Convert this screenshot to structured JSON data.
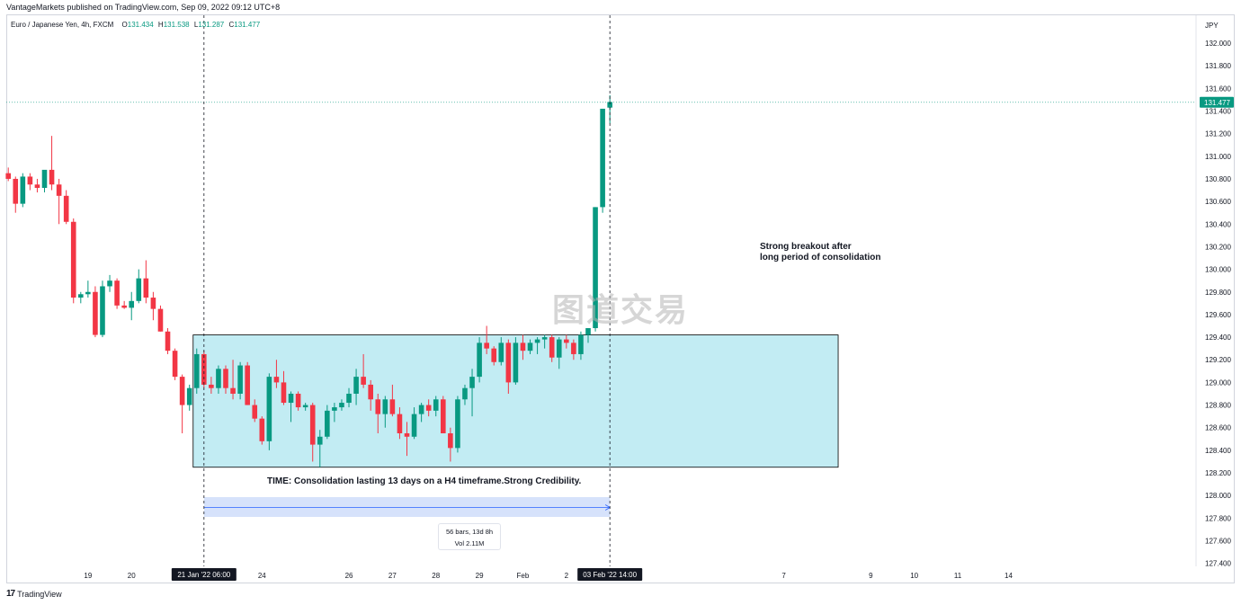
{
  "header": {
    "published": "VantageMarkets published on TradingView.com, Sep 09, 2022 09:12 UTC+8"
  },
  "legend": {
    "symbol": "Euro / Japanese Yen, 4h, FXCM",
    "o_label": "O",
    "o": "131.434",
    "h_label": "H",
    "h": "131.538",
    "l_label": "L",
    "l": "131.287",
    "c_label": "C",
    "c": "131.477"
  },
  "annotations": {
    "breakout_line1": "Strong breakout after",
    "breakout_line2": "long period of consolidation",
    "time_note": "TIME: Consolidation lasting 13 days on a H4 timeframe.Strong Credibility.",
    "measure_bars": "56 bars, 13d 8h",
    "measure_vol": "Vol 2.11M"
  },
  "watermark": "图道交易",
  "footer": {
    "logo": "17",
    "brand": "TradingView"
  },
  "colors": {
    "up": "#089981",
    "down": "#f23645",
    "box_fill": "#c2ecf3",
    "box_stroke": "#000000",
    "measure_fill": "#d6e2fb",
    "measure_line": "#2962ff",
    "price_tag": "#089981"
  },
  "chart_data": {
    "type": "candlestick",
    "symbol": "Euro / Japanese Yen, 4h, FXCM",
    "y_unit": "JPY",
    "ylim": [
      127.2,
      132.2
    ],
    "yticks": [
      "132.000",
      "131.800",
      "131.600",
      "131.400",
      "131.200",
      "131.000",
      "130.800",
      "130.600",
      "130.400",
      "130.200",
      "130.000",
      "129.800",
      "129.600",
      "129.400",
      "129.200",
      "129.000",
      "128.800",
      "128.600",
      "128.400",
      "128.200",
      "128.000",
      "127.800",
      "127.600",
      "127.400"
    ],
    "x_ticks": [
      {
        "label": "19",
        "bar": 11
      },
      {
        "label": "20",
        "bar": 17
      },
      {
        "label": "24",
        "bar": 35
      },
      {
        "label": "26",
        "bar": 47
      },
      {
        "label": "27",
        "bar": 53
      },
      {
        "label": "28",
        "bar": 59
      },
      {
        "label": "29",
        "bar": 65
      },
      {
        "label": "Feb",
        "bar": 71
      },
      {
        "label": "2",
        "bar": 77
      },
      {
        "label": "7",
        "bar": 107
      },
      {
        "label": "9",
        "bar": 119
      },
      {
        "label": "10",
        "bar": 125
      },
      {
        "label": "11",
        "bar": 131
      },
      {
        "label": "14",
        "bar": 138
      }
    ],
    "current_price": "131.477",
    "marker_left": {
      "label": "21 Jan '22   06:00",
      "bar": 27
    },
    "marker_right": {
      "label": "03 Feb '22   14:00",
      "bar": 83
    },
    "box": {
      "from_bar": 26,
      "to_bar": 114,
      "top": 129.42,
      "bottom": 128.25
    },
    "measure": {
      "from_bar": 27,
      "to_bar": 83,
      "label": "56 bars, 13d 8h",
      "volume": "Vol 2.11M"
    },
    "candles": [
      [
        130.85,
        130.9,
        130.78,
        130.8
      ],
      [
        130.8,
        130.82,
        130.5,
        130.58
      ],
      [
        130.58,
        130.85,
        130.55,
        130.82
      ],
      [
        130.82,
        130.85,
        130.7,
        130.75
      ],
      [
        130.75,
        130.8,
        130.68,
        130.72
      ],
      [
        130.72,
        130.85,
        130.68,
        130.88
      ],
      [
        130.88,
        131.18,
        130.7,
        130.75
      ],
      [
        130.75,
        130.8,
        130.4,
        130.65
      ],
      [
        130.65,
        130.7,
        130.4,
        130.42
      ],
      [
        130.42,
        130.45,
        129.7,
        129.75
      ],
      [
        129.75,
        129.8,
        129.7,
        129.78
      ],
      [
        129.78,
        129.9,
        129.75,
        129.8
      ],
      [
        129.8,
        129.85,
        129.4,
        129.42
      ],
      [
        129.42,
        129.9,
        129.4,
        129.85
      ],
      [
        129.85,
        129.95,
        129.8,
        129.9
      ],
      [
        129.9,
        129.92,
        129.65,
        129.68
      ],
      [
        129.68,
        129.72,
        129.65,
        129.66
      ],
      [
        129.66,
        129.8,
        129.55,
        129.72
      ],
      [
        129.72,
        130.0,
        129.7,
        129.92
      ],
      [
        129.92,
        130.08,
        129.7,
        129.75
      ],
      [
        129.75,
        129.8,
        129.55,
        129.65
      ],
      [
        129.65,
        129.68,
        129.45,
        129.45
      ],
      [
        129.45,
        129.48,
        129.25,
        129.28
      ],
      [
        129.28,
        129.3,
        129.02,
        129.05
      ],
      [
        129.05,
        129.07,
        128.55,
        128.8
      ],
      [
        128.8,
        128.98,
        128.75,
        128.95
      ],
      [
        128.95,
        129.3,
        128.9,
        129.25
      ],
      [
        129.25,
        129.28,
        128.95,
        128.98
      ],
      [
        128.98,
        129.05,
        128.9,
        128.95
      ],
      [
        128.95,
        129.15,
        128.9,
        129.12
      ],
      [
        129.12,
        129.15,
        128.9,
        128.95
      ],
      [
        128.95,
        129.2,
        128.85,
        128.9
      ],
      [
        128.9,
        129.18,
        128.85,
        129.15
      ],
      [
        129.15,
        129.18,
        128.8,
        128.8
      ],
      [
        128.8,
        128.85,
        128.65,
        128.68
      ],
      [
        128.68,
        128.7,
        128.45,
        128.48
      ],
      [
        128.48,
        129.08,
        128.4,
        129.05
      ],
      [
        129.05,
        129.2,
        128.95,
        129.0
      ],
      [
        129.0,
        129.1,
        128.8,
        128.82
      ],
      [
        128.82,
        128.92,
        128.65,
        128.9
      ],
      [
        128.9,
        128.92,
        128.75,
        128.78
      ],
      [
        128.78,
        128.82,
        128.75,
        128.8
      ],
      [
        128.8,
        128.82,
        128.3,
        128.45
      ],
      [
        128.45,
        128.58,
        128.25,
        128.52
      ],
      [
        128.52,
        128.8,
        128.5,
        128.75
      ],
      [
        128.75,
        128.82,
        128.65,
        128.78
      ],
      [
        128.78,
        128.85,
        128.75,
        128.82
      ],
      [
        128.82,
        128.95,
        128.78,
        128.9
      ],
      [
        128.9,
        129.12,
        128.8,
        129.05
      ],
      [
        129.05,
        129.25,
        128.95,
        128.98
      ],
      [
        128.98,
        129.02,
        128.75,
        128.85
      ],
      [
        128.85,
        128.9,
        128.55,
        128.72
      ],
      [
        128.72,
        128.88,
        128.6,
        128.85
      ],
      [
        128.85,
        128.98,
        128.7,
        128.72
      ],
      [
        128.72,
        128.78,
        128.5,
        128.55
      ],
      [
        128.55,
        128.65,
        128.35,
        128.52
      ],
      [
        128.52,
        128.78,
        128.5,
        128.72
      ],
      [
        128.72,
        128.82,
        128.65,
        128.8
      ],
      [
        128.8,
        128.85,
        128.7,
        128.75
      ],
      [
        128.75,
        128.88,
        128.7,
        128.85
      ],
      [
        128.85,
        128.88,
        128.55,
        128.55
      ],
      [
        128.55,
        128.6,
        128.3,
        128.42
      ],
      [
        128.42,
        128.88,
        128.38,
        128.85
      ],
      [
        128.85,
        128.98,
        128.8,
        128.95
      ],
      [
        128.95,
        129.12,
        128.7,
        129.05
      ],
      [
        129.05,
        129.4,
        129.0,
        129.35
      ],
      [
        129.35,
        129.5,
        129.25,
        129.3
      ],
      [
        129.3,
        129.32,
        129.15,
        129.18
      ],
      [
        129.18,
        129.4,
        129.15,
        129.35
      ],
      [
        129.35,
        129.38,
        128.9,
        129.0
      ],
      [
        129.0,
        129.4,
        128.98,
        129.35
      ],
      [
        129.35,
        129.42,
        129.2,
        129.28
      ],
      [
        129.28,
        129.38,
        129.25,
        129.35
      ],
      [
        129.35,
        129.4,
        129.25,
        129.38
      ],
      [
        129.38,
        129.42,
        129.3,
        129.4
      ],
      [
        129.4,
        129.42,
        129.18,
        129.22
      ],
      [
        129.22,
        129.4,
        129.12,
        129.38
      ],
      [
        129.38,
        129.42,
        129.3,
        129.35
      ],
      [
        129.35,
        129.38,
        129.2,
        129.25
      ],
      [
        129.25,
        129.45,
        129.2,
        129.42
      ],
      [
        129.42,
        129.48,
        129.35,
        129.48
      ],
      [
        129.48,
        130.55,
        129.45,
        130.55
      ],
      [
        130.55,
        131.42,
        130.5,
        131.42
      ],
      [
        131.43,
        131.54,
        131.29,
        131.48
      ]
    ]
  }
}
